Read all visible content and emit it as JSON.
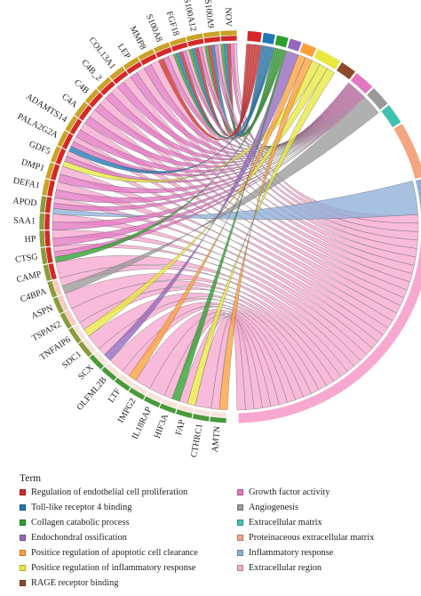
{
  "legend": {
    "title": "Term",
    "items": [
      {
        "label": "Regulation of endothelial cell proliferation",
        "color": "#d62728"
      },
      {
        "label": "Growth factor activity",
        "color": "#e377c2"
      },
      {
        "label": "Toll-like receptor 4 binding",
        "color": "#1f77b4"
      },
      {
        "label": "Angiogenesis",
        "color": "#9a9a9a"
      },
      {
        "label": "Collagen catabolic process",
        "color": "#2ca02c"
      },
      {
        "label": "Extracellular matrix",
        "color": "#40c2b0"
      },
      {
        "label": "Endochondral ossification",
        "color": "#9467bd"
      },
      {
        "label": "Proteinaceous extracellular matrix",
        "color": "#f4a582"
      },
      {
        "label": "Positice regulation of apoptotic cell clearance",
        "color": "#ff9f3a"
      },
      {
        "label": "Inflammatory response",
        "color": "#8fb0d8"
      },
      {
        "label": "Positice regulation of inflammatory response",
        "color": "#e8e840"
      },
      {
        "label": "Extracellular region",
        "color": "#f7a8d0"
      },
      {
        "label": "RAGE receptor binding",
        "color": "#8c4a2a"
      }
    ]
  },
  "genes": [
    "NOV",
    "S100A9",
    "S100A12",
    "FGF18",
    "S100A8",
    "MMP8",
    "LEP",
    "COL13A1",
    "C4B_2",
    "C4B",
    "C4A",
    "ADAMTS14",
    "PALA2G2A",
    "GDF5",
    "DMP1",
    "DEFA1",
    "APOD",
    "SAA1",
    "HP",
    "CTSG",
    "CAMP",
    "C4BPA",
    "ASPN",
    "TSPAN2",
    "TNFAIP6",
    "SDC1",
    "SCX",
    "OLFML2B",
    "LTF",
    "IMPG2",
    "IL18RAP",
    "HIF3A",
    "FAP",
    "CTHRC1",
    "AMTN"
  ],
  "terms": [
    {
      "color": "#d62728"
    },
    {
      "color": "#1f77b4"
    },
    {
      "color": "#2ca02c"
    },
    {
      "color": "#9467bd"
    },
    {
      "color": "#ff9f3a"
    },
    {
      "color": "#e8e840"
    },
    {
      "color": "#8c4a2a"
    },
    {
      "color": "#e377c2"
    },
    {
      "color": "#9a9a9a"
    },
    {
      "color": "#40c2b0"
    },
    {
      "color": "#f4a582"
    },
    {
      "color": "#8fb0d8"
    },
    {
      "color": "#f7a8d0"
    }
  ],
  "gene_ring_colors": {
    "up": "#c9a227",
    "mid": "#8a9b3a",
    "down": "#4a9a3c"
  }
}
